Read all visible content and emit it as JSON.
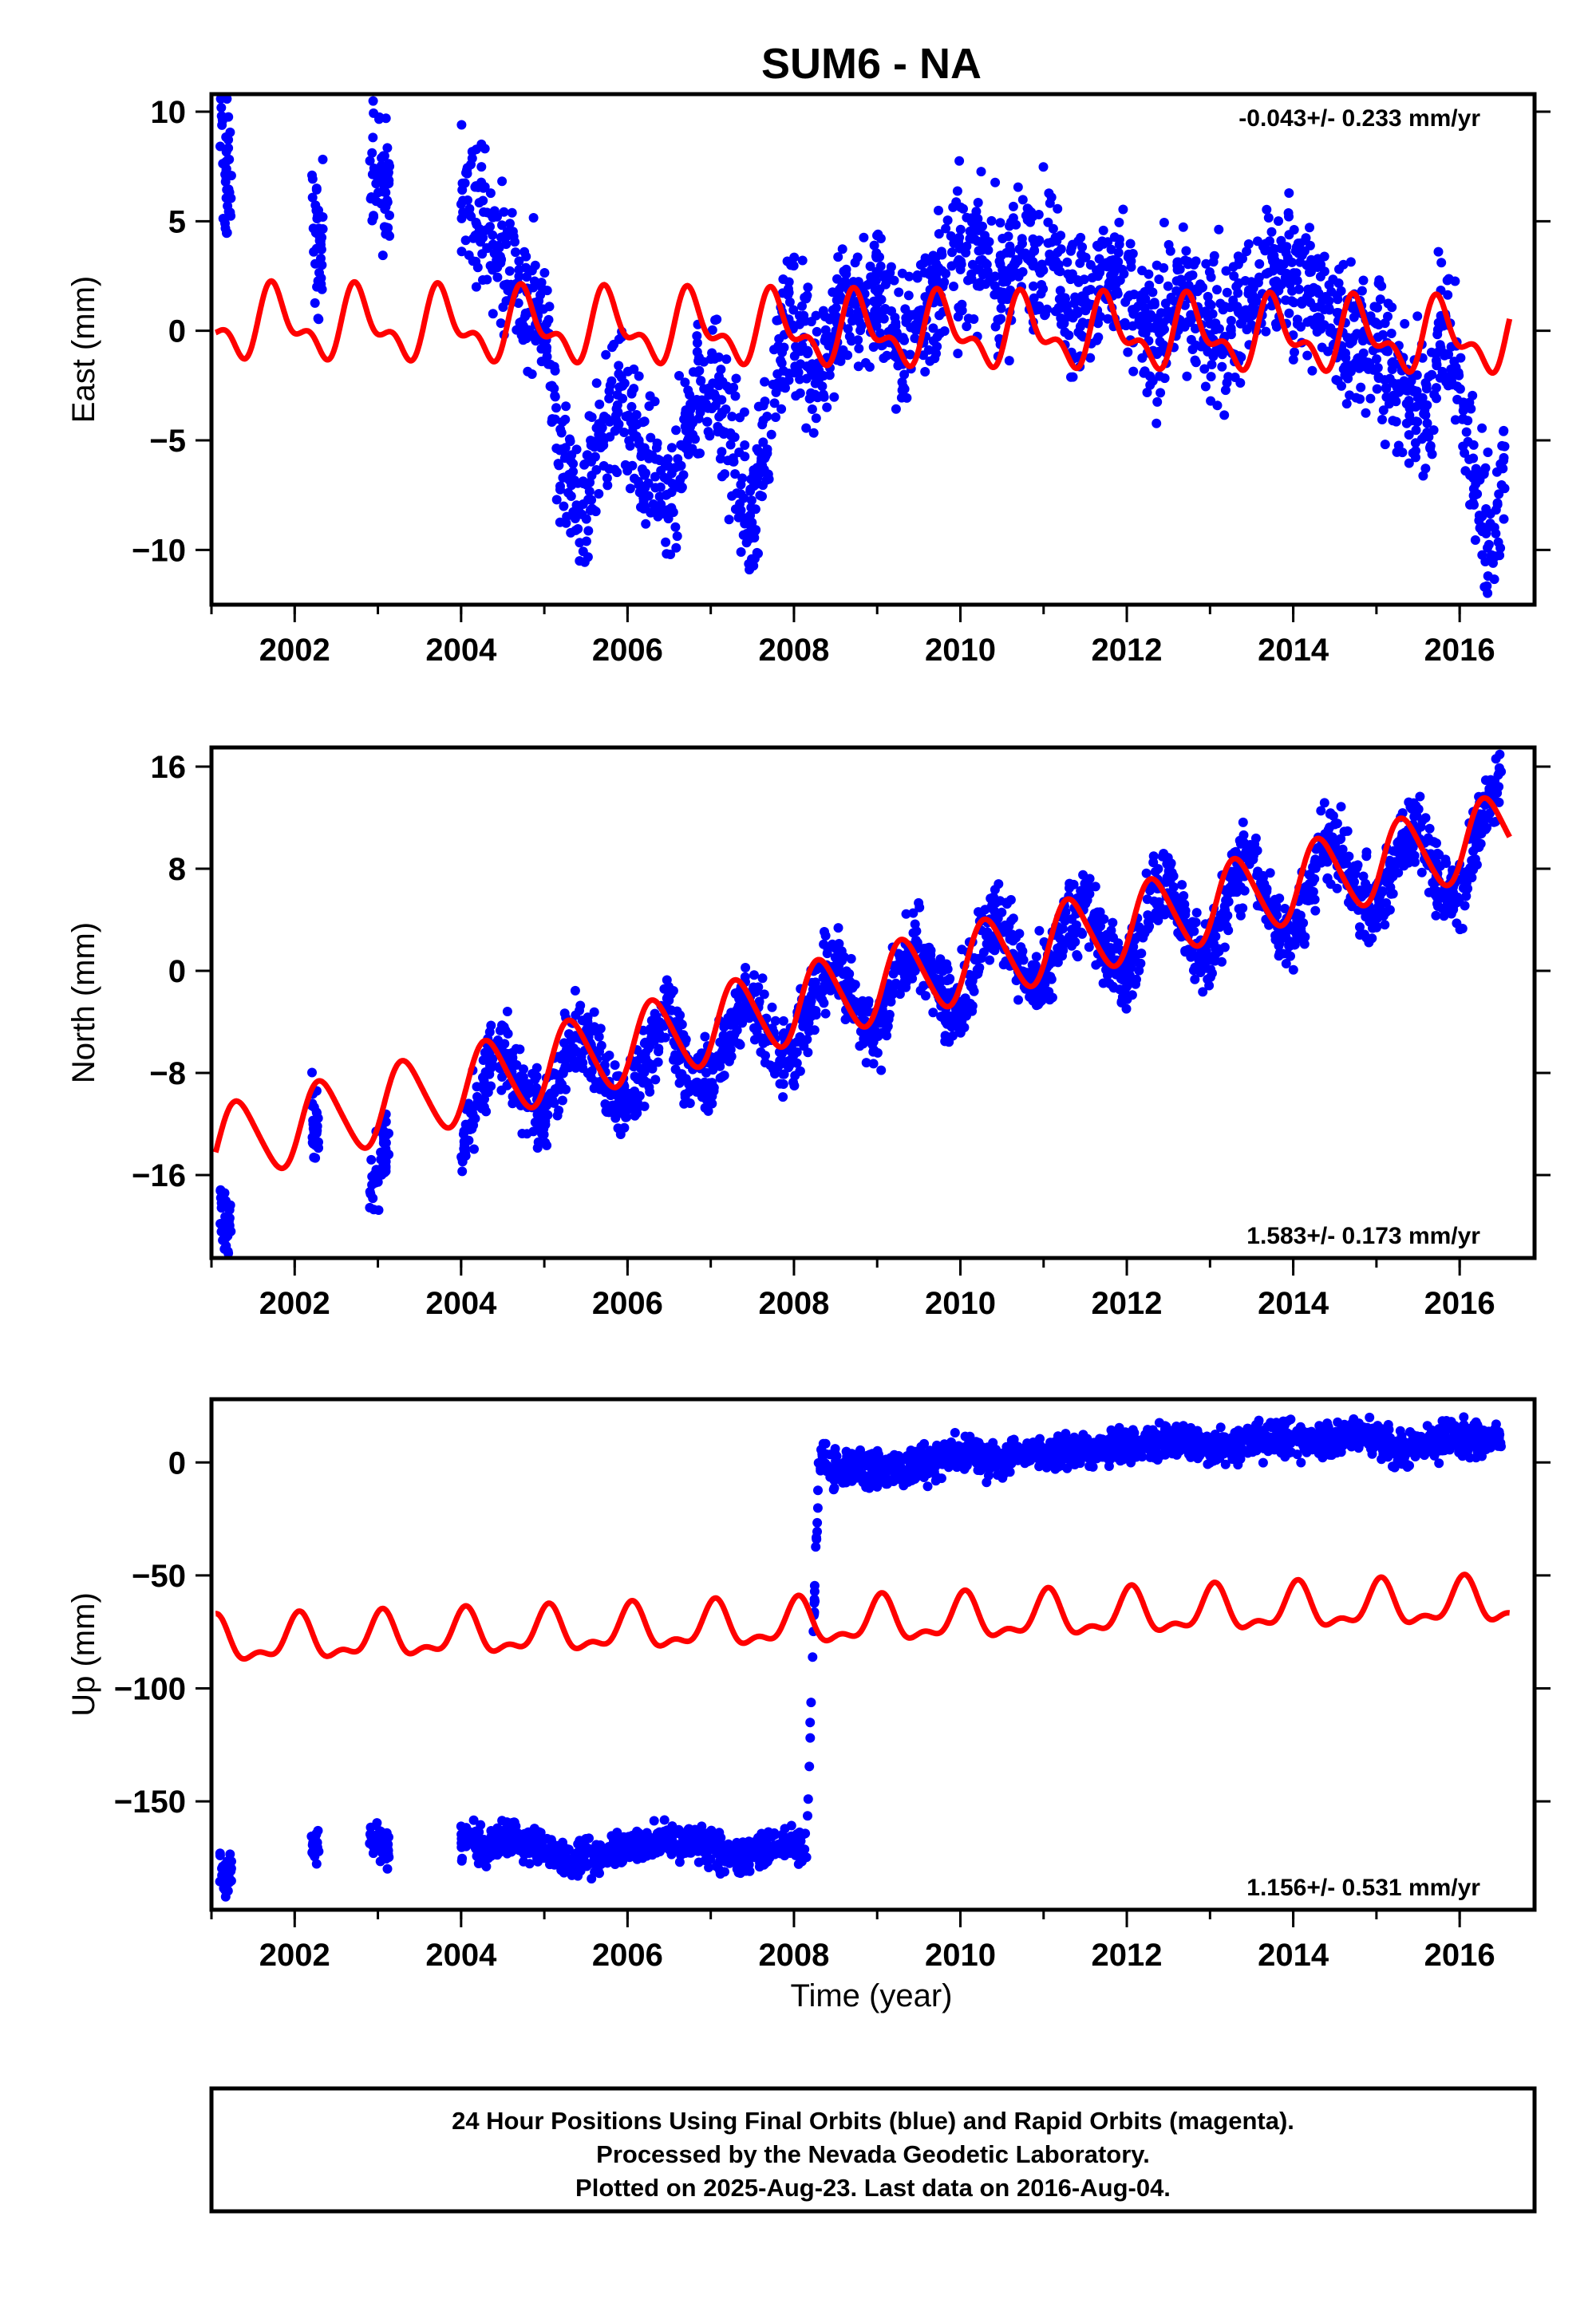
{
  "title": "SUM6 - NA",
  "xlabel": "Time (year)",
  "footer": {
    "line1": "24 Hour Positions Using Final Orbits (blue) and Rapid Orbits (magenta).",
    "line2": "Processed by the Nevada Geodetic Laboratory.",
    "line3": "Plotted on 2025-Aug-23. Last data on 2016-Aug-04."
  },
  "colors": {
    "data": "#0000ff",
    "model": "#ff0000",
    "frame": "#000000"
  },
  "chart_data": [
    {
      "type": "scatter",
      "name": "east",
      "ylabel": "East (mm)",
      "xlim": [
        2001.0,
        2016.9
      ],
      "ylim": [
        -12.5,
        10.8
      ],
      "xticks": [
        2002,
        2004,
        2006,
        2008,
        2010,
        2012,
        2014,
        2016
      ],
      "yticks": [
        -10,
        -5,
        0,
        5,
        10
      ],
      "ytick_labels": [
        "−10",
        "−5",
        "0",
        "5",
        "10"
      ],
      "rate_text": "-0.043+/- 0.233 mm/yr",
      "rate_position": "top-right",
      "observations": {
        "x": [
          2001.1,
          2001.15,
          2001.2,
          2002.2,
          2002.25,
          2002.3,
          2002.9,
          2003.0,
          2003.1,
          2004.0,
          2004.2,
          2004.5,
          2004.8,
          2005.0,
          2005.2,
          2005.4,
          2005.6,
          2005.9,
          2006.2,
          2006.5,
          2006.8,
          2007.0,
          2007.3,
          2007.5,
          2007.8,
          2008.0,
          2008.3,
          2008.6,
          2008.8,
          2009.0,
          2009.3,
          2009.6,
          2009.9,
          2010.2,
          2010.5,
          2010.8,
          2011.1,
          2011.4,
          2011.7,
          2012.0,
          2012.3,
          2012.6,
          2012.9,
          2013.2,
          2013.5,
          2013.8,
          2014.1,
          2014.4,
          2014.7,
          2015.0,
          2015.3,
          2015.6,
          2015.8,
          2016.0,
          2016.2,
          2016.4,
          2016.55
        ],
        "y": [
          9.0,
          7.5,
          7.0,
          5.0,
          3.5,
          4.2,
          6.5,
          7.8,
          6.0,
          7.0,
          5.5,
          3.5,
          1.5,
          0.0,
          -5.0,
          -8.5,
          -6.0,
          -3.0,
          -6.5,
          -8.0,
          -3.0,
          -2.0,
          -6.0,
          -9.0,
          -1.0,
          0.5,
          -2.0,
          1.5,
          1.0,
          2.0,
          -1.0,
          1.5,
          3.0,
          3.5,
          2.0,
          4.0,
          3.5,
          1.0,
          2.5,
          1.5,
          -0.5,
          1.5,
          0.5,
          0.0,
          1.5,
          3.0,
          2.5,
          0.5,
          -0.5,
          0.0,
          -3.0,
          -4.0,
          1.0,
          -3.5,
          -7.0,
          -9.5,
          -6.0
        ],
        "spread": 1.6
      },
      "model": {
        "intercept": 0.0,
        "rate": -0.043,
        "annual_sin": -1.3,
        "annual_cos": 0.2,
        "semiannual_sin": 0.5,
        "semiannual_cos": -0.6,
        "x_range": [
          2001.05,
          2016.6
        ]
      }
    },
    {
      "type": "scatter",
      "name": "north",
      "ylabel": "North (mm)",
      "xlim": [
        2001.0,
        2016.9
      ],
      "ylim": [
        -22.5,
        17.5
      ],
      "xticks": [
        2002,
        2004,
        2006,
        2008,
        2010,
        2012,
        2014,
        2016
      ],
      "yticks": [
        -16,
        -8,
        0,
        8,
        16
      ],
      "ytick_labels": [
        "−16",
        "−8",
        "0",
        "8",
        "16"
      ],
      "rate_text": "1.583+/- 0.173 mm/yr",
      "rate_position": "bottom-right",
      "observations": {
        "x": [
          2001.1,
          2001.15,
          2001.2,
          2002.2,
          2002.25,
          2002.9,
          2003.0,
          2003.1,
          2004.0,
          2004.3,
          2004.5,
          2004.8,
          2005.0,
          2005.3,
          2005.5,
          2005.8,
          2006.0,
          2006.3,
          2006.5,
          2006.8,
          2007.0,
          2007.3,
          2007.5,
          2007.8,
          2008.0,
          2008.3,
          2008.5,
          2008.8,
          2009.0,
          2009.3,
          2009.5,
          2009.8,
          2010.0,
          2010.3,
          2010.5,
          2010.8,
          2011.0,
          2011.3,
          2011.5,
          2011.8,
          2012.0,
          2012.3,
          2012.5,
          2012.8,
          2013.0,
          2013.3,
          2013.5,
          2013.8,
          2014.0,
          2014.3,
          2014.5,
          2014.8,
          2015.0,
          2015.3,
          2015.5,
          2015.8,
          2016.0,
          2016.3,
          2016.5
        ],
        "y": [
          -18.0,
          -19.5,
          -20.0,
          -11.0,
          -12.5,
          -17.5,
          -15.5,
          -14.0,
          -14.5,
          -8.0,
          -6.0,
          -10.5,
          -11.0,
          -6.5,
          -5.0,
          -9.5,
          -10.5,
          -5.5,
          -3.5,
          -8.5,
          -8.5,
          -3.5,
          -2.5,
          -6.5,
          -6.5,
          -1.0,
          1.0,
          -4.0,
          -4.5,
          0.5,
          2.0,
          -2.0,
          -3.0,
          3.0,
          4.5,
          -1.0,
          -1.5,
          4.0,
          5.5,
          0.5,
          -0.5,
          6.0,
          7.0,
          1.5,
          1.0,
          7.5,
          9.0,
          3.5,
          2.5,
          9.0,
          10.5,
          5.5,
          4.5,
          10.0,
          11.5,
          6.5,
          6.0,
          12.5,
          15.5
        ],
        "spread": 1.5
      },
      "model": {
        "intercept": -1.9,
        "rate": 1.583,
        "annual_sin": 2.7,
        "annual_cos": -1.3,
        "semiannual_sin": 0.2,
        "semiannual_cos": -0.3,
        "x_range": [
          2001.05,
          2016.6
        ]
      }
    },
    {
      "type": "scatter",
      "name": "up",
      "ylabel": "Up (mm)",
      "xlim": [
        2001.0,
        2016.9
      ],
      "ylim": [
        -198,
        28
      ],
      "xticks": [
        2002,
        2004,
        2006,
        2008,
        2010,
        2012,
        2014,
        2016
      ],
      "yticks": [
        -150,
        -100,
        -50,
        0
      ],
      "ytick_labels": [
        "−150",
        "−100",
        "−50",
        "0"
      ],
      "rate_text": "1.156+/- 0.531 mm/yr",
      "rate_position": "bottom-right",
      "observations": {
        "x": [
          2001.1,
          2001.15,
          2001.2,
          2002.2,
          2002.25,
          2002.9,
          2003.0,
          2003.1,
          2004.0,
          2004.3,
          2004.6,
          2004.9,
          2005.2,
          2005.5,
          2005.8,
          2006.1,
          2006.4,
          2006.7,
          2007.0,
          2007.3,
          2007.6,
          2007.9,
          2008.15,
          2008.3,
          2008.6,
          2008.9,
          2009.2,
          2009.5,
          2009.8,
          2010.1,
          2010.4,
          2010.7,
          2011.0,
          2011.3,
          2011.6,
          2011.9,
          2012.2,
          2012.5,
          2012.8,
          2013.0,
          2013.25,
          2013.5,
          2013.8,
          2014.1,
          2014.4,
          2014.7,
          2015.0,
          2015.3,
          2015.6,
          2015.9,
          2016.2,
          2016.5
        ],
        "y": [
          -180,
          -183,
          -182,
          -168,
          -170,
          -165,
          -168,
          -171,
          -168,
          -170,
          -166,
          -170,
          -174,
          -175,
          -172,
          -170,
          -167,
          -168,
          -170,
          -176,
          -172,
          -168,
          -170,
          0,
          -3,
          -2,
          -4,
          0,
          2,
          3,
          1,
          3,
          4,
          6,
          5,
          7,
          8,
          10,
          9,
          7,
          8,
          10,
          11,
          9,
          10,
          13,
          11,
          5,
          8,
          12,
          10,
          10
        ],
        "spread": 4.0
      },
      "model": {
        "intercept": -71.4,
        "rate": 1.156,
        "annual_sin": 2.5,
        "annual_cos": 8.5,
        "semiannual_sin": 3.0,
        "semiannual_cos": 3.0,
        "x_range": [
          2001.05,
          2016.6
        ]
      }
    }
  ]
}
